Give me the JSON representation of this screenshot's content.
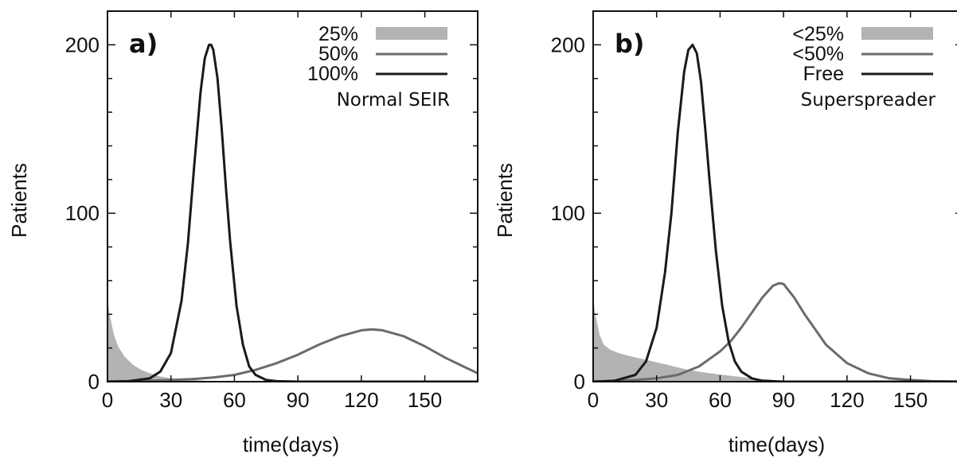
{
  "chart_data": [
    {
      "type": "area",
      "panel_label": "a)",
      "note": "Normal SEIR",
      "xlabel": "time(days)",
      "ylabel": "Patients",
      "xlim": [
        0,
        175
      ],
      "ylim": [
        0,
        220
      ],
      "xticks": [
        0,
        30,
        60,
        90,
        120,
        150
      ],
      "yticks": [
        0,
        100,
        200
      ],
      "legend_position": "top-right",
      "series": [
        {
          "name": "25%",
          "style": "area",
          "color": "#b3b3b3",
          "x": [
            0,
            1,
            3,
            5,
            8,
            12,
            16,
            20,
            25,
            30,
            35,
            40,
            45,
            50,
            55,
            60
          ],
          "y": [
            48,
            40,
            28,
            21,
            15,
            10,
            7,
            5,
            3,
            2,
            1.5,
            1,
            0.6,
            0.3,
            0.1,
            0
          ]
        },
        {
          "name": "50%",
          "style": "line",
          "color": "#6b6b6b",
          "x": [
            0,
            20,
            30,
            40,
            50,
            60,
            70,
            80,
            90,
            100,
            110,
            120,
            125,
            130,
            140,
            150,
            160,
            170,
            175
          ],
          "y": [
            0,
            0.5,
            1,
            1.5,
            2.5,
            4,
            7,
            11,
            16,
            22,
            27,
            30.5,
            31,
            30.5,
            27,
            21,
            14,
            8,
            5
          ]
        },
        {
          "name": "100%",
          "style": "line",
          "color": "#1a1a1a",
          "x": [
            0,
            10,
            20,
            25,
            30,
            35,
            38,
            41,
            44,
            46,
            48,
            49,
            50,
            52,
            54,
            56,
            58,
            61,
            64,
            67,
            70,
            75,
            80,
            90,
            175
          ],
          "y": [
            0,
            0.3,
            2,
            6,
            17,
            48,
            82,
            128,
            172,
            192,
            200,
            200,
            197,
            180,
            150,
            115,
            83,
            45,
            22,
            9,
            4,
            1,
            0.3,
            0,
            0
          ]
        }
      ]
    },
    {
      "type": "area",
      "panel_label": "b)",
      "note": "Superspreader",
      "xlabel": "time(days)",
      "ylabel": "Patients",
      "xlim": [
        0,
        175
      ],
      "ylim": [
        0,
        220
      ],
      "xticks": [
        0,
        30,
        60,
        90,
        120,
        150
      ],
      "yticks": [
        0,
        100,
        200
      ],
      "legend_position": "top-right",
      "series": [
        {
          "name": "<25%",
          "style": "area",
          "color": "#b3b3b3",
          "x": [
            0,
            1,
            3,
            5,
            8,
            12,
            18,
            25,
            35,
            45,
            55,
            65,
            75,
            85,
            95,
            110
          ],
          "y": [
            50,
            40,
            28,
            22,
            19,
            17,
            15,
            13,
            10,
            7,
            5,
            3.5,
            2,
            1,
            0.3,
            0
          ]
        },
        {
          "name": "<50%",
          "style": "line",
          "color": "#6b6b6b",
          "x": [
            0,
            20,
            30,
            40,
            50,
            60,
            65,
            70,
            75,
            80,
            85,
            88,
            90,
            95,
            100,
            110,
            120,
            130,
            140,
            150,
            160,
            175
          ],
          "y": [
            0,
            1,
            2,
            4,
            9,
            18,
            24,
            32,
            41,
            50,
            57,
            58.5,
            58,
            50,
            40,
            22,
            11,
            5,
            2,
            1,
            0.3,
            0
          ]
        },
        {
          "name": "Free",
          "style": "line",
          "color": "#1a1a1a",
          "x": [
            0,
            10,
            20,
            25,
            30,
            34,
            37,
            40,
            43,
            45,
            47,
            49,
            51,
            53,
            55,
            58,
            61,
            64,
            67,
            70,
            75,
            80,
            90,
            175
          ],
          "y": [
            0,
            0.5,
            4,
            12,
            32,
            65,
            100,
            148,
            184,
            197,
            200,
            195,
            178,
            150,
            120,
            78,
            45,
            24,
            12,
            6,
            2,
            0.5,
            0,
            0
          ]
        }
      ]
    }
  ]
}
